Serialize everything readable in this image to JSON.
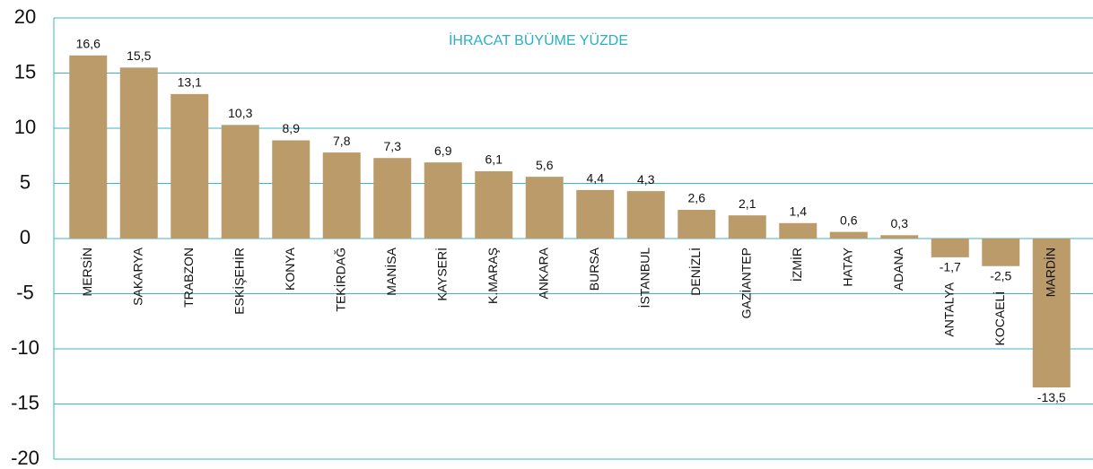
{
  "chart_data": {
    "type": "bar",
    "title": "İHRACAT BÜYÜME YÜZDE",
    "categories": [
      "MERSİN",
      "SAKARYA",
      "TRABZON",
      "ESKİŞEHİR",
      "KONYA",
      "TEKİRDAĞ",
      "MANİSA",
      "KAYSERİ",
      "K.MARAŞ",
      "ANKARA",
      "BURSA",
      "İSTANBUL",
      "DENİZLİ",
      "GAZİANTEP",
      "İZMİR",
      "HATAY",
      "ADANA",
      "ANTALYA",
      "KOCAELİ",
      "MARDİN"
    ],
    "values": [
      16.6,
      15.5,
      13.1,
      10.3,
      8.9,
      7.8,
      7.3,
      6.9,
      6.1,
      5.6,
      4.4,
      4.3,
      2.6,
      2.1,
      1.4,
      0.6,
      0.3,
      -1.7,
      -2.5,
      -13.5
    ],
    "value_labels": [
      "16,6",
      "15,5",
      "13,1",
      "10,3",
      "8,9",
      "7,8",
      "7,3",
      "6,9",
      "6,1",
      "5,6",
      "4,4",
      "4,3",
      "2,6",
      "2,1",
      "1,4",
      "0,6",
      "0,3",
      "-1,7",
      "-2,5",
      "-13,5"
    ],
    "color": "#bb9b6a",
    "ylim": [
      -20,
      20
    ],
    "yticks": [
      -20,
      -15,
      -10,
      -5,
      0,
      5,
      10,
      15,
      20
    ],
    "grid": true
  }
}
